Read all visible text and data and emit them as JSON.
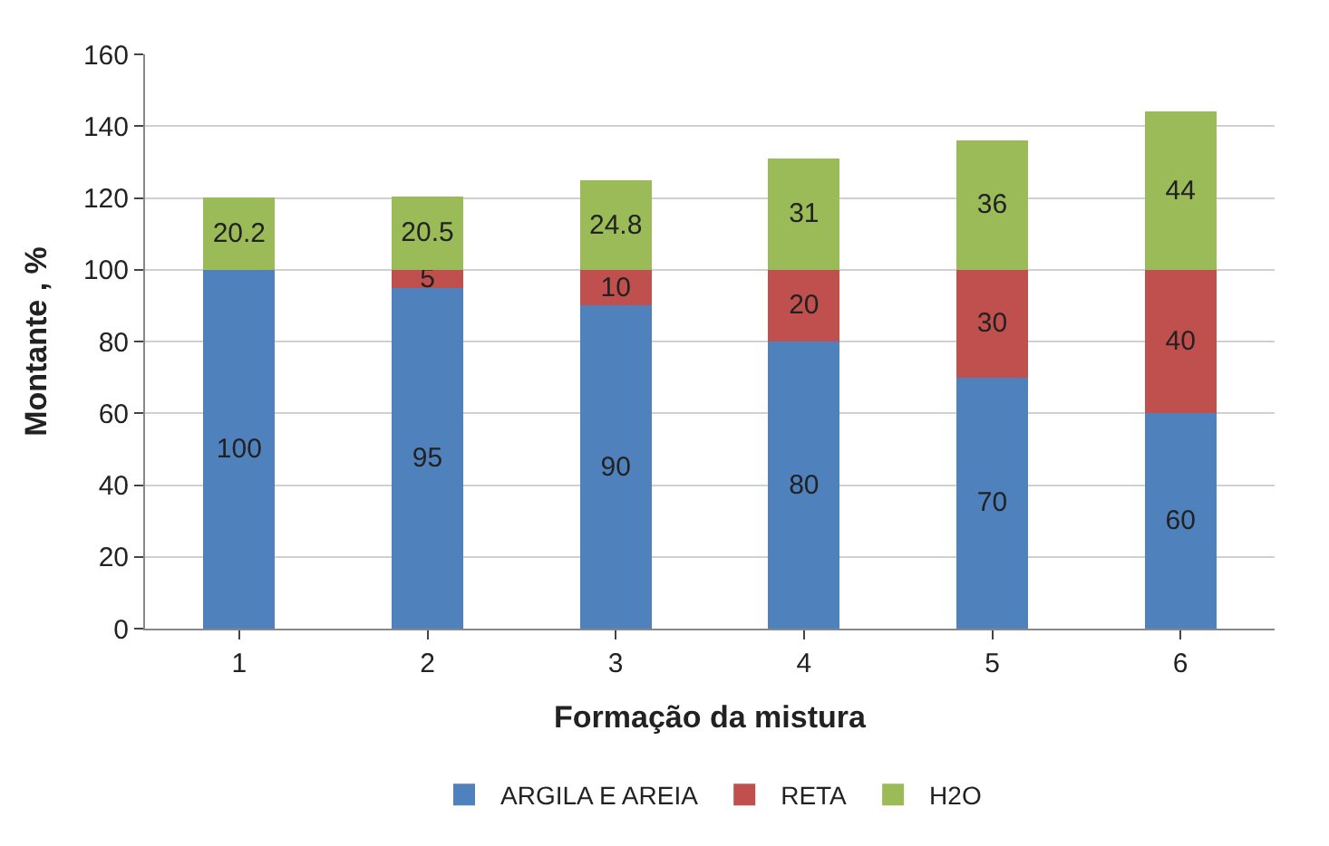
{
  "chart_data": {
    "type": "bar",
    "stacked": true,
    "xlabel": "Formação da mistura",
    "ylabel": "Montante , %",
    "categories": [
      "1",
      "2",
      "3",
      "4",
      "5",
      "6"
    ],
    "series": [
      {
        "name": "ARGILA E AREIA",
        "color": "#4f81bd",
        "values": [
          100,
          95,
          90,
          80,
          70,
          60
        ]
      },
      {
        "name": "RETA",
        "color": "#c0504d",
        "values": [
          null,
          5,
          10,
          20,
          30,
          40
        ]
      },
      {
        "name": "H2O",
        "color": "#9bbb59",
        "values": [
          20.2,
          20.5,
          24.8,
          31,
          36,
          44
        ]
      }
    ],
    "ylim": [
      0,
      160
    ],
    "yticks": [
      0,
      20,
      40,
      60,
      80,
      100,
      120,
      140,
      160
    ],
    "grid": "y",
    "legend": "bottom",
    "data_labels": true
  }
}
